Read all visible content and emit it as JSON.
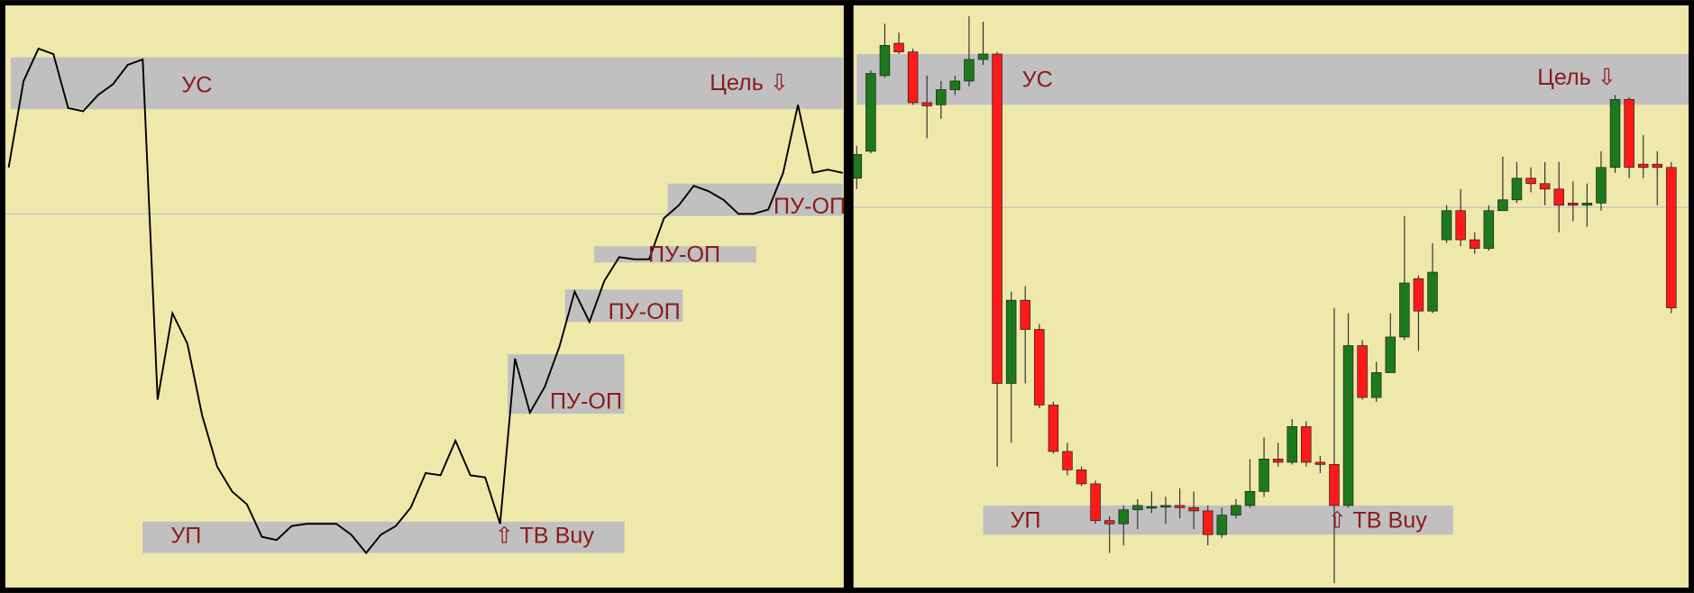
{
  "chart_data": [
    {
      "type": "line",
      "color": "#000000",
      "ylim": [
        0,
        549
      ],
      "values": [
        394,
        474,
        504,
        499,
        449,
        446,
        461,
        471,
        489,
        494,
        179,
        259,
        231,
        164,
        117,
        94,
        82,
        52,
        49,
        62,
        64,
        64,
        64,
        54,
        37,
        54,
        62,
        79,
        111,
        109,
        141,
        109,
        107,
        64,
        217,
        167,
        191,
        229,
        279,
        251,
        289,
        311,
        309,
        309,
        347,
        359,
        377,
        372,
        364,
        351,
        351,
        355,
        389,
        452,
        389,
        392,
        389
      ],
      "annotations": [
        "УС",
        "Цель ⇩",
        "УП",
        "⇧ TB Buy",
        "ПУ-ОП",
        "ПУ-ОП",
        "ПУ-ОП",
        "ПУ-ОП"
      ]
    },
    {
      "type": "candlestick",
      "up_color": "#1c7a1c",
      "down_color": "#ff1a1a",
      "ylim": [
        0,
        549
      ],
      "open": [
        384,
        409,
        479,
        509,
        501,
        454,
        452,
        466,
        474,
        494,
        499,
        194,
        271,
        244,
        174,
        131,
        114,
        101,
        67,
        64,
        77,
        79,
        80,
        81,
        79,
        76,
        54,
        72,
        81,
        94,
        124,
        121,
        154,
        121,
        119,
        81,
        229,
        181,
        204,
        237,
        291,
        261,
        327,
        354,
        327,
        319,
        354,
        364,
        384,
        379,
        374,
        361,
        359,
        361,
        394,
        457,
        397,
        397,
        394
      ],
      "close": [
        406,
        481,
        507,
        501,
        454,
        451,
        466,
        474,
        494,
        499,
        194,
        271,
        244,
        174,
        131,
        114,
        101,
        67,
        64,
        77,
        81,
        80,
        81,
        79,
        76,
        54,
        72,
        81,
        94,
        124,
        121,
        154,
        121,
        119,
        81,
        229,
        181,
        204,
        237,
        287,
        261,
        297,
        354,
        327,
        319,
        354,
        364,
        384,
        379,
        374,
        359,
        359,
        361,
        394,
        457,
        394,
        394,
        394,
        264
      ],
      "high": [
        414,
        484,
        527,
        519,
        504,
        479,
        474,
        479,
        534,
        529,
        501,
        279,
        284,
        249,
        177,
        139,
        117,
        104,
        71,
        81,
        87,
        94,
        89,
        97,
        94,
        81,
        79,
        87,
        124,
        144,
        139,
        161,
        159,
        127,
        264,
        259,
        234,
        214,
        259,
        349,
        294,
        324,
        359,
        374,
        334,
        359,
        404,
        399,
        394,
        399,
        399,
        381,
        379,
        409,
        461,
        459,
        424,
        409,
        399
      ],
      "low": [
        374,
        407,
        477,
        499,
        452,
        421,
        439,
        461,
        469,
        489,
        117,
        139,
        194,
        171,
        129,
        109,
        99,
        64,
        37,
        44,
        59,
        74,
        64,
        69,
        59,
        44,
        51,
        69,
        79,
        89,
        117,
        119,
        117,
        111,
        9,
        79,
        179,
        177,
        204,
        234,
        224,
        259,
        324,
        321,
        314,
        317,
        354,
        361,
        371,
        359,
        334,
        344,
        339,
        354,
        389,
        384,
        384,
        359,
        259
      ],
      "annotations": [
        "УС",
        "Цель ⇩",
        "УП",
        "⇧ TB Buy"
      ]
    }
  ]
}
